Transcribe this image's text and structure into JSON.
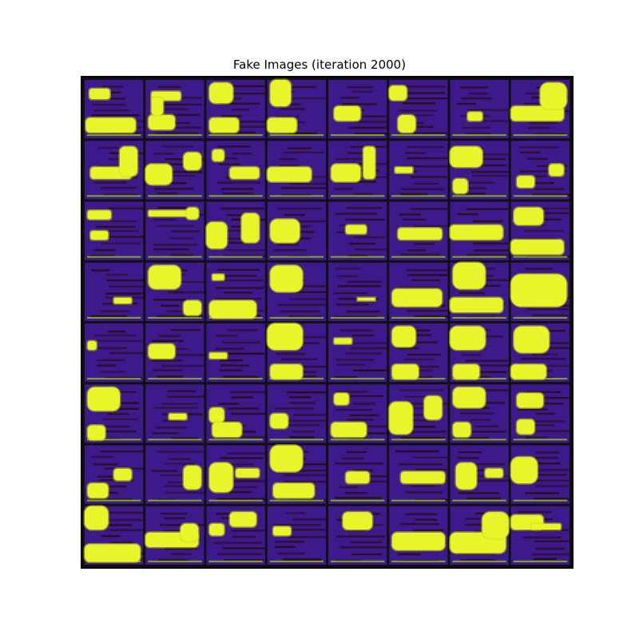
{
  "figure": {
    "title": "Fake Images (iteration 2000)"
  },
  "grid": {
    "rows": 8,
    "cols": 8,
    "colors": {
      "background": "#3d1a8c",
      "dark_stripe": "#2a0c1c",
      "blob": "#e8f52a",
      "blob_edge": "#c8e000",
      "ground": "#9ccc00",
      "separator": "#101010"
    },
    "tiles": [
      {
        "r": 0,
        "c": 0,
        "blobs": [
          [
            0.08,
            0.15,
            0.35,
            0.18
          ],
          [
            0.02,
            0.65,
            0.85,
            0.25
          ]
        ]
      },
      {
        "r": 0,
        "c": 1,
        "blobs": [
          [
            0.1,
            0.2,
            0.5,
            0.15
          ],
          [
            0.05,
            0.6,
            0.45,
            0.25
          ],
          [
            0.1,
            0.3,
            0.2,
            0.3
          ]
        ]
      },
      {
        "r": 0,
        "c": 2,
        "blobs": [
          [
            0.05,
            0.05,
            0.4,
            0.35
          ],
          [
            0.05,
            0.65,
            0.5,
            0.25
          ]
        ]
      },
      {
        "r": 0,
        "c": 3,
        "blobs": [
          [
            0.05,
            0.0,
            0.35,
            0.45
          ],
          [
            0.0,
            0.65,
            0.5,
            0.25
          ]
        ]
      },
      {
        "r": 0,
        "c": 4,
        "blobs": [
          [
            0.1,
            0.45,
            0.45,
            0.25
          ]
        ]
      },
      {
        "r": 0,
        "c": 5,
        "blobs": [
          [
            0.0,
            0.1,
            0.3,
            0.25
          ],
          [
            0.15,
            0.6,
            0.3,
            0.3
          ]
        ]
      },
      {
        "r": 0,
        "c": 6,
        "blobs": [
          [
            0.3,
            0.55,
            0.25,
            0.15
          ]
        ]
      },
      {
        "r": 0,
        "c": 7,
        "blobs": [
          [
            0.0,
            0.45,
            0.9,
            0.25
          ],
          [
            0.5,
            0.05,
            0.45,
            0.45
          ]
        ]
      },
      {
        "r": 1,
        "c": 0,
        "blobs": [
          [
            0.1,
            0.45,
            0.7,
            0.2
          ],
          [
            0.6,
            0.1,
            0.3,
            0.5
          ]
        ]
      },
      {
        "r": 1,
        "c": 1,
        "blobs": [
          [
            0.0,
            0.4,
            0.45,
            0.35
          ],
          [
            0.65,
            0.2,
            0.3,
            0.3
          ]
        ]
      },
      {
        "r": 1,
        "c": 2,
        "blobs": [
          [
            0.1,
            0.15,
            0.2,
            0.2
          ],
          [
            0.4,
            0.45,
            0.5,
            0.2
          ]
        ]
      },
      {
        "r": 1,
        "c": 3,
        "blobs": [
          [
            0.0,
            0.45,
            0.75,
            0.25
          ]
        ]
      },
      {
        "r": 1,
        "c": 4,
        "blobs": [
          [
            0.05,
            0.4,
            0.5,
            0.3
          ],
          [
            0.6,
            0.1,
            0.2,
            0.55
          ]
        ]
      },
      {
        "r": 1,
        "c": 5,
        "blobs": [
          [
            0.1,
            0.45,
            0.3,
            0.1
          ]
        ]
      },
      {
        "r": 1,
        "c": 6,
        "blobs": [
          [
            0.0,
            0.1,
            0.55,
            0.35
          ],
          [
            0.05,
            0.65,
            0.25,
            0.25
          ]
        ]
      },
      {
        "r": 1,
        "c": 7,
        "blobs": [
          [
            0.1,
            0.6,
            0.3,
            0.2
          ],
          [
            0.65,
            0.4,
            0.25,
            0.2
          ]
        ]
      },
      {
        "r": 2,
        "c": 0,
        "blobs": [
          [
            0.05,
            0.15,
            0.4,
            0.15
          ],
          [
            0.1,
            0.5,
            0.3,
            0.15
          ]
        ]
      },
      {
        "r": 2,
        "c": 1,
        "blobs": [
          [
            0.05,
            0.15,
            0.85,
            0.1
          ],
          [
            0.7,
            0.1,
            0.2,
            0.2
          ]
        ]
      },
      {
        "r": 2,
        "c": 2,
        "blobs": [
          [
            0.0,
            0.35,
            0.35,
            0.45
          ],
          [
            0.6,
            0.2,
            0.3,
            0.5
          ]
        ]
      },
      {
        "r": 2,
        "c": 3,
        "blobs": [
          [
            0.05,
            0.3,
            0.5,
            0.4
          ]
        ]
      },
      {
        "r": 2,
        "c": 4,
        "blobs": [
          [
            0.3,
            0.4,
            0.35,
            0.15
          ]
        ]
      },
      {
        "r": 2,
        "c": 5,
        "blobs": [
          [
            0.15,
            0.45,
            0.75,
            0.2
          ]
        ]
      },
      {
        "r": 2,
        "c": 6,
        "blobs": [
          [
            0.0,
            0.4,
            0.9,
            0.25
          ]
        ]
      },
      {
        "r": 2,
        "c": 7,
        "blobs": [
          [
            0.05,
            0.1,
            0.5,
            0.3
          ],
          [
            0.0,
            0.65,
            0.9,
            0.25
          ]
        ]
      },
      {
        "r": 3,
        "c": 0,
        "blobs": [
          [
            0.5,
            0.6,
            0.3,
            0.1
          ]
        ]
      },
      {
        "r": 3,
        "c": 1,
        "blobs": [
          [
            0.05,
            0.05,
            0.55,
            0.4
          ],
          [
            0.65,
            0.65,
            0.3,
            0.25
          ]
        ]
      },
      {
        "r": 3,
        "c": 2,
        "blobs": [
          [
            0.1,
            0.2,
            0.2,
            0.1
          ],
          [
            0.05,
            0.65,
            0.8,
            0.3
          ]
        ]
      },
      {
        "r": 3,
        "c": 3,
        "blobs": [
          [
            0.05,
            0.05,
            0.55,
            0.45
          ]
        ]
      },
      {
        "r": 3,
        "c": 4,
        "blobs": [
          [
            0.5,
            0.6,
            0.3,
            0.05
          ]
        ]
      },
      {
        "r": 3,
        "c": 5,
        "blobs": [
          [
            0.05,
            0.45,
            0.85,
            0.3
          ]
        ]
      },
      {
        "r": 3,
        "c": 6,
        "blobs": [
          [
            0.05,
            0.0,
            0.55,
            0.45
          ],
          [
            0.0,
            0.6,
            0.9,
            0.25
          ]
        ]
      },
      {
        "r": 3,
        "c": 7,
        "blobs": [
          [
            0.0,
            0.2,
            0.95,
            0.55
          ]
        ]
      },
      {
        "r": 4,
        "c": 0,
        "blobs": [
          [
            0.05,
            0.3,
            0.15,
            0.15
          ]
        ]
      },
      {
        "r": 4,
        "c": 1,
        "blobs": [
          [
            0.05,
            0.35,
            0.45,
            0.25
          ]
        ]
      },
      {
        "r": 4,
        "c": 2,
        "blobs": [
          [
            0.05,
            0.5,
            0.3,
            0.1
          ]
        ]
      },
      {
        "r": 4,
        "c": 3,
        "blobs": [
          [
            0.0,
            0.0,
            0.6,
            0.45
          ],
          [
            0.05,
            0.7,
            0.55,
            0.25
          ]
        ]
      },
      {
        "r": 4,
        "c": 4,
        "blobs": [
          [
            0.1,
            0.25,
            0.3,
            0.1
          ]
        ]
      },
      {
        "r": 4,
        "c": 5,
        "blobs": [
          [
            0.05,
            0.05,
            0.4,
            0.35
          ],
          [
            0.05,
            0.7,
            0.45,
            0.25
          ]
        ]
      },
      {
        "r": 4,
        "c": 6,
        "blobs": [
          [
            0.0,
            0.05,
            0.6,
            0.4
          ],
          [
            0.05,
            0.7,
            0.45,
            0.25
          ]
        ]
      },
      {
        "r": 4,
        "c": 7,
        "blobs": [
          [
            0.05,
            0.05,
            0.6,
            0.45
          ],
          [
            0.0,
            0.7,
            0.6,
            0.25
          ]
        ]
      },
      {
        "r": 5,
        "c": 0,
        "blobs": [
          [
            0.05,
            0.05,
            0.55,
            0.4
          ],
          [
            0.05,
            0.7,
            0.3,
            0.25
          ]
        ]
      },
      {
        "r": 5,
        "c": 1,
        "blobs": [
          [
            0.4,
            0.5,
            0.3,
            0.1
          ]
        ]
      },
      {
        "r": 5,
        "c": 2,
        "blobs": [
          [
            0.05,
            0.4,
            0.25,
            0.25
          ],
          [
            0.1,
            0.65,
            0.5,
            0.25
          ]
        ]
      },
      {
        "r": 5,
        "c": 3,
        "blobs": [
          [
            0.05,
            0.5,
            0.3,
            0.25
          ]
        ]
      },
      {
        "r": 5,
        "c": 4,
        "blobs": [
          [
            0.05,
            0.65,
            0.6,
            0.25
          ],
          [
            0.1,
            0.15,
            0.25,
            0.2
          ]
        ]
      },
      {
        "r": 5,
        "c": 5,
        "blobs": [
          [
            0.0,
            0.3,
            0.4,
            0.55
          ],
          [
            0.6,
            0.2,
            0.3,
            0.4
          ]
        ]
      },
      {
        "r": 5,
        "c": 6,
        "blobs": [
          [
            0.05,
            0.05,
            0.55,
            0.35
          ],
          [
            0.05,
            0.65,
            0.3,
            0.25
          ]
        ]
      },
      {
        "r": 5,
        "c": 7,
        "blobs": [
          [
            0.1,
            0.15,
            0.45,
            0.25
          ],
          [
            0.1,
            0.6,
            0.3,
            0.25
          ]
        ]
      },
      {
        "r": 6,
        "c": 0,
        "blobs": [
          [
            0.05,
            0.65,
            0.35,
            0.25
          ],
          [
            0.5,
            0.4,
            0.3,
            0.2
          ]
        ]
      },
      {
        "r": 6,
        "c": 1,
        "blobs": [
          [
            0.65,
            0.35,
            0.3,
            0.4
          ]
        ]
      },
      {
        "r": 6,
        "c": 2,
        "blobs": [
          [
            0.05,
            0.3,
            0.4,
            0.5
          ],
          [
            0.5,
            0.4,
            0.4,
            0.15
          ]
        ]
      },
      {
        "r": 6,
        "c": 3,
        "blobs": [
          [
            0.05,
            0.0,
            0.55,
            0.45
          ],
          [
            0.1,
            0.65,
            0.7,
            0.25
          ]
        ]
      },
      {
        "r": 6,
        "c": 4,
        "blobs": [
          [
            0.3,
            0.45,
            0.4,
            0.2
          ]
        ]
      },
      {
        "r": 6,
        "c": 5,
        "blobs": [
          [
            0.2,
            0.45,
            0.75,
            0.2
          ]
        ]
      },
      {
        "r": 6,
        "c": 6,
        "blobs": [
          [
            0.1,
            0.3,
            0.35,
            0.45
          ],
          [
            0.6,
            0.4,
            0.3,
            0.15
          ]
        ]
      },
      {
        "r": 6,
        "c": 7,
        "blobs": [
          [
            0.0,
            0.2,
            0.45,
            0.45
          ]
        ]
      },
      {
        "r": 7,
        "c": 0,
        "blobs": [
          [
            0.0,
            0.0,
            0.4,
            0.4
          ],
          [
            0.0,
            0.65,
            0.95,
            0.3
          ]
        ]
      },
      {
        "r": 7,
        "c": 1,
        "blobs": [
          [
            0.0,
            0.45,
            0.9,
            0.25
          ],
          [
            0.6,
            0.3,
            0.3,
            0.3
          ]
        ]
      },
      {
        "r": 7,
        "c": 2,
        "blobs": [
          [
            0.05,
            0.3,
            0.25,
            0.2
          ],
          [
            0.4,
            0.1,
            0.45,
            0.25
          ]
        ]
      },
      {
        "r": 7,
        "c": 3,
        "blobs": [
          [
            0.1,
            0.35,
            0.3,
            0.15
          ]
        ]
      },
      {
        "r": 7,
        "c": 4,
        "blobs": [
          [
            0.25,
            0.1,
            0.5,
            0.3
          ]
        ]
      },
      {
        "r": 7,
        "c": 5,
        "blobs": [
          [
            0.05,
            0.45,
            0.9,
            0.3
          ]
        ]
      },
      {
        "r": 7,
        "c": 6,
        "blobs": [
          [
            0.0,
            0.45,
            0.95,
            0.35
          ],
          [
            0.55,
            0.1,
            0.45,
            0.45
          ]
        ]
      },
      {
        "r": 7,
        "c": 7,
        "blobs": [
          [
            0.0,
            0.15,
            0.55,
            0.25
          ],
          [
            0.35,
            0.3,
            0.5,
            0.1
          ]
        ]
      }
    ]
  }
}
